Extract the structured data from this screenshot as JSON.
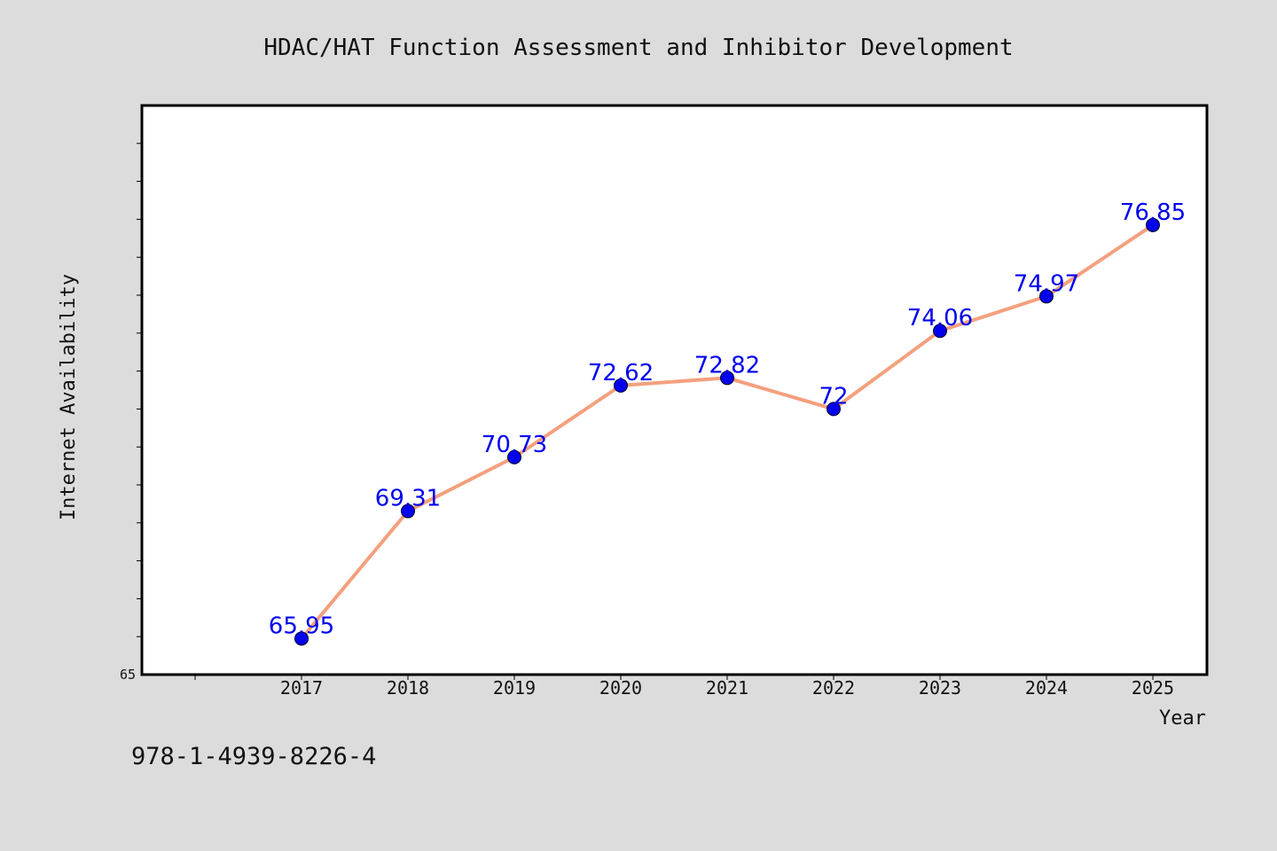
{
  "chart_data": {
    "type": "line",
    "title": "HDAC/HAT Function Assessment and Inhibitor Development",
    "xlabel": "Year",
    "ylabel": "Internet Availability",
    "categories": [
      "2017",
      "2018",
      "2019",
      "2020",
      "2021",
      "2022",
      "2023",
      "2024",
      "2025"
    ],
    "series": [
      {
        "values": [
          65.95,
          69.31,
          70.73,
          72.62,
          72.82,
          72.0,
          74.06,
          74.97,
          76.85
        ],
        "labels": [
          "65.95",
          "69.31",
          "70.73",
          "72.62",
          "72.82",
          "72",
          "74.06",
          "74.97",
          "76.85"
        ]
      }
    ],
    "ylim": [
      65,
      80
    ],
    "yticks_labeled": [
      "65"
    ],
    "grid": false,
    "colors": {
      "line": "#f4a07e",
      "marker": "#0000ee",
      "data_label": "#0000ee",
      "background": "#dcdcdc",
      "plot_background": "#ffffff"
    }
  },
  "footer": {
    "isbn": "978-1-4939-8226-4"
  }
}
